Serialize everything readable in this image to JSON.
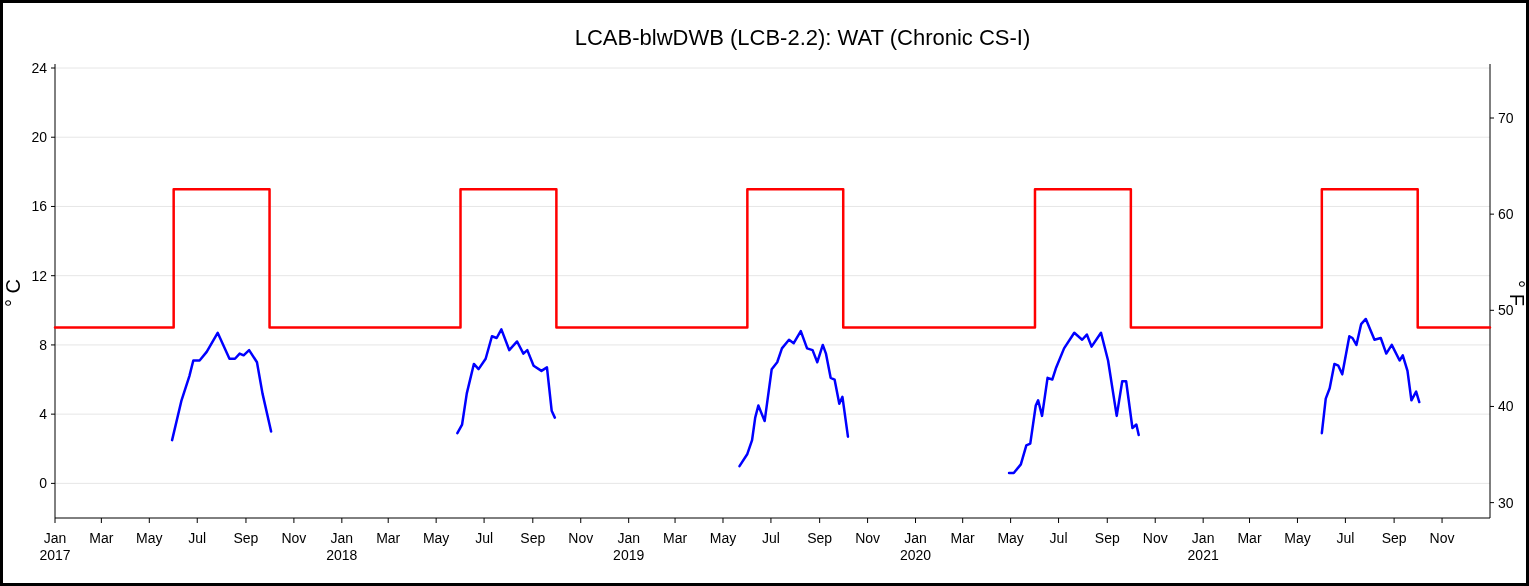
{
  "chart_data": {
    "type": "line",
    "title": "LCAB-blwDWB (LCB-2.2): WAT (Chronic CS-I)",
    "ylabel": "° C",
    "y2label": "° F",
    "xlim": [
      "2017-01-01",
      "2022-01-01"
    ],
    "xticks": [
      {
        "value": "2017-01-01",
        "label": "Jan\n2017"
      },
      {
        "value": "2017-03-01",
        "label": "Mar"
      },
      {
        "value": "2017-05-01",
        "label": "May"
      },
      {
        "value": "2017-07-01",
        "label": "Jul"
      },
      {
        "value": "2017-09-01",
        "label": "Sep"
      },
      {
        "value": "2017-11-01",
        "label": "Nov"
      },
      {
        "value": "2018-01-01",
        "label": "Jan\n2018"
      },
      {
        "value": "2018-03-01",
        "label": "Mar"
      },
      {
        "value": "2018-05-01",
        "label": "May"
      },
      {
        "value": "2018-07-01",
        "label": "Jul"
      },
      {
        "value": "2018-09-01",
        "label": "Sep"
      },
      {
        "value": "2018-11-01",
        "label": "Nov"
      },
      {
        "value": "2019-01-01",
        "label": "Jan\n2019"
      },
      {
        "value": "2019-03-01",
        "label": "Mar"
      },
      {
        "value": "2019-05-01",
        "label": "May"
      },
      {
        "value": "2019-07-01",
        "label": "Jul"
      },
      {
        "value": "2019-09-01",
        "label": "Sep"
      },
      {
        "value": "2019-11-01",
        "label": "Nov"
      },
      {
        "value": "2020-01-01",
        "label": "Jan\n2020"
      },
      {
        "value": "2020-03-01",
        "label": "Mar"
      },
      {
        "value": "2020-05-01",
        "label": "May"
      },
      {
        "value": "2020-07-01",
        "label": "Jul"
      },
      {
        "value": "2020-09-01",
        "label": "Sep"
      },
      {
        "value": "2020-11-01",
        "label": "Nov"
      },
      {
        "value": "2021-01-01",
        "label": "Jan\n2021"
      },
      {
        "value": "2021-03-01",
        "label": "Mar"
      },
      {
        "value": "2021-05-01",
        "label": "May"
      },
      {
        "value": "2021-07-01",
        "label": "Jul"
      },
      {
        "value": "2021-09-01",
        "label": "Sep"
      },
      {
        "value": "2021-11-01",
        "label": "Nov"
      }
    ],
    "ylim": [
      -2,
      24
    ],
    "yticks": [
      0,
      4,
      8,
      12,
      16,
      20,
      24
    ],
    "y2lim": [
      28.4,
      75.2
    ],
    "y2ticks": [
      30,
      40,
      50,
      60,
      70
    ],
    "grid": "y",
    "line_style": "solid",
    "marker": "none",
    "series": [
      {
        "color": "#ff0000",
        "x": [
          "2017-01-01",
          "2017-06-01",
          "2017-06-01",
          "2017-10-01",
          "2017-10-01",
          "2018-06-01",
          "2018-06-01",
          "2018-10-01",
          "2018-10-01",
          "2019-06-01",
          "2019-06-01",
          "2019-10-01",
          "2019-10-01",
          "2020-06-01",
          "2020-06-01",
          "2020-10-01",
          "2020-10-01",
          "2021-06-01",
          "2021-06-01",
          "2021-10-01",
          "2021-10-01",
          "2022-01-01"
        ],
        "values": [
          9,
          9,
          17,
          17,
          9,
          9,
          17,
          17,
          9,
          9,
          17,
          17,
          9,
          9,
          17,
          17,
          9,
          9,
          17,
          17,
          9,
          9
        ]
      },
      {
        "color": "#0000ff",
        "x": [
          "2017-05-30",
          "2017-06-11",
          "2017-06-21",
          "2017-06-26",
          "2017-07-04",
          "2017-07-13",
          "2017-07-27",
          "2017-08-11",
          "2017-08-18",
          "2017-08-24",
          "2017-08-29",
          "2017-09-05",
          "2017-09-15",
          "2017-09-22",
          "2017-10-03",
          "2018-01-01",
          "2018-05-28",
          "2018-06-03",
          "2018-06-09",
          "2018-06-18",
          "2018-06-24",
          "2018-07-03",
          "2018-07-11",
          "2018-07-17",
          "2018-07-23",
          "2018-08-02",
          "2018-08-12",
          "2018-08-20",
          "2018-08-25",
          "2018-09-02",
          "2018-09-12",
          "2018-09-19",
          "2018-09-25",
          "2018-09-29",
          "2019-01-01",
          "2019-05-22",
          "2019-06-01",
          "2019-06-07",
          "2019-06-11",
          "2019-06-15",
          "2019-06-23",
          "2019-07-02",
          "2019-07-09",
          "2019-07-15",
          "2019-07-24",
          "2019-07-30",
          "2019-08-08",
          "2019-08-16",
          "2019-08-23",
          "2019-08-29",
          "2019-09-05",
          "2019-09-09",
          "2019-09-15",
          "2019-09-20",
          "2019-09-26",
          "2019-09-30",
          "2019-10-07",
          "2020-01-01",
          "2020-04-29",
          "2020-05-05",
          "2020-05-14",
          "2020-05-21",
          "2020-05-26",
          "2020-06-02",
          "2020-06-05",
          "2020-06-10",
          "2020-06-17",
          "2020-06-23",
          "2020-06-28",
          "2020-07-08",
          "2020-07-21",
          "2020-07-31",
          "2020-08-06",
          "2020-08-12",
          "2020-08-24",
          "2020-09-02",
          "2020-09-13",
          "2020-09-20",
          "2020-09-25",
          "2020-10-03",
          "2020-10-08",
          "2020-10-11",
          "2021-01-01",
          "2021-06-01",
          "2021-06-06",
          "2021-06-11",
          "2021-06-17",
          "2021-06-22",
          "2021-06-27",
          "2021-07-06",
          "2021-07-10",
          "2021-07-15",
          "2021-07-21",
          "2021-07-27",
          "2021-08-07",
          "2021-08-15",
          "2021-08-22",
          "2021-08-29",
          "2021-09-08",
          "2021-09-12",
          "2021-09-18",
          "2021-09-23",
          "2021-09-29",
          "2021-10-03"
        ],
        "values": [
          2.5,
          4.8,
          6.2,
          7.1,
          7.1,
          7.6,
          8.7,
          7.2,
          7.2,
          7.5,
          7.4,
          7.7,
          7.0,
          5.2,
          3.0,
          null,
          2.9,
          3.4,
          5.2,
          6.9,
          6.6,
          7.2,
          8.5,
          8.4,
          8.9,
          7.7,
          8.2,
          7.5,
          7.7,
          6.8,
          6.5,
          6.7,
          4.2,
          3.8,
          null,
          1.0,
          1.7,
          2.5,
          3.8,
          4.5,
          3.6,
          6.6,
          7.0,
          7.8,
          8.3,
          8.1,
          8.8,
          7.8,
          7.7,
          7.0,
          8.0,
          7.5,
          6.1,
          6.0,
          4.6,
          5.0,
          2.7,
          null,
          0.6,
          0.6,
          1.1,
          2.2,
          2.3,
          4.5,
          4.8,
          3.9,
          6.1,
          6.0,
          6.7,
          7.8,
          8.7,
          8.3,
          8.6,
          7.9,
          8.7,
          7.1,
          3.9,
          5.9,
          5.9,
          3.2,
          3.4,
          2.8,
          null,
          2.9,
          4.9,
          5.5,
          6.9,
          6.8,
          6.3,
          8.5,
          8.4,
          8.0,
          9.2,
          9.5,
          8.3,
          8.4,
          7.5,
          8.0,
          7.1,
          7.4,
          6.5,
          4.8,
          5.3,
          4.7
        ]
      }
    ]
  }
}
